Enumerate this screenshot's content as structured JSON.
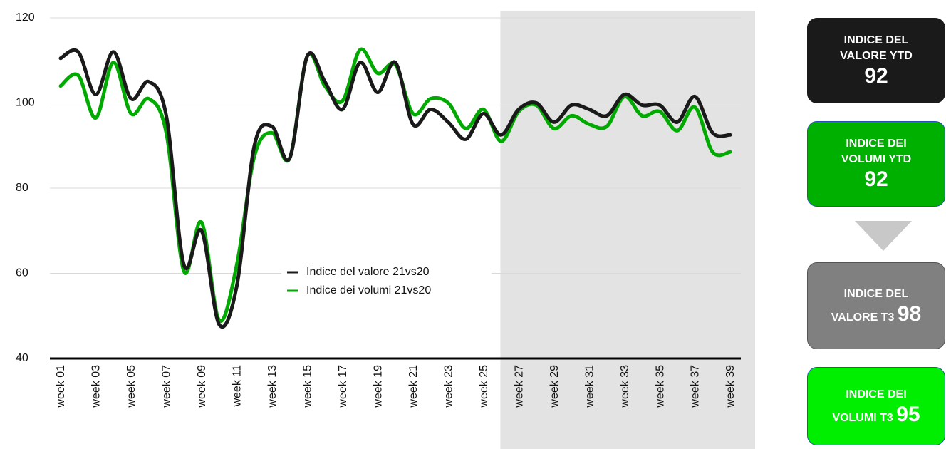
{
  "chart_data": {
    "type": "line",
    "categories": [
      "week 01",
      null,
      "week 03",
      null,
      "week 05",
      null,
      "week 07",
      null,
      "week 09",
      null,
      "week 11",
      null,
      "week 13",
      null,
      "week 15",
      null,
      "week 17",
      null,
      "week 19",
      null,
      "week 21",
      null,
      "week 23",
      null,
      "week 25",
      null,
      "week 27",
      null,
      "week 29",
      null,
      "week 31",
      null,
      "week 33",
      null,
      "week 35",
      null,
      "week 37",
      null,
      "week 39"
    ],
    "series": [
      {
        "name": "Indice del valore 21vs20",
        "color": "#1a1a1a",
        "values": [
          110.5,
          112,
          102,
          112,
          101,
          105,
          97,
          62,
          70,
          48,
          57,
          90,
          94.5,
          87,
          111,
          105,
          98.5,
          109.5,
          102.5,
          109.5,
          95,
          98.5,
          95.5,
          91.5,
          97.5,
          92.5,
          98.5,
          100,
          95.5,
          99.5,
          98.5,
          97,
          102,
          99.5,
          99.5,
          95.5,
          101.5,
          93,
          92.5
        ]
      },
      {
        "name": "Indice dei volumi 21vs20",
        "color": "#00aa00",
        "values": [
          104,
          106.5,
          96.5,
          109.5,
          97.5,
          101,
          93,
          60.5,
          72,
          49,
          62,
          87.5,
          93,
          87,
          111,
          104,
          100.5,
          112.5,
          107,
          109,
          97.5,
          101,
          100,
          94,
          98.5,
          91,
          98,
          99.5,
          94,
          97,
          95,
          94.5,
          101.5,
          97,
          98,
          93.5,
          99,
          88.5,
          88.5
        ]
      }
    ],
    "ylim": [
      40,
      120
    ],
    "yticks": [
      40,
      60,
      80,
      100,
      120
    ],
    "grid": true
  },
  "panels": [
    {
      "lines": [
        "INDICE DEL",
        "VALORE YTD"
      ],
      "value": 92
    },
    {
      "lines": [
        "INDICE DEI",
        "VOLUMI YTD"
      ],
      "value": 92
    },
    {
      "lines": [
        "INDICE DEL",
        "VALORE T3"
      ],
      "value": 98
    },
    {
      "lines": [
        "INDICE DEI",
        "VOLUMI T3"
      ],
      "value": 95
    }
  ]
}
